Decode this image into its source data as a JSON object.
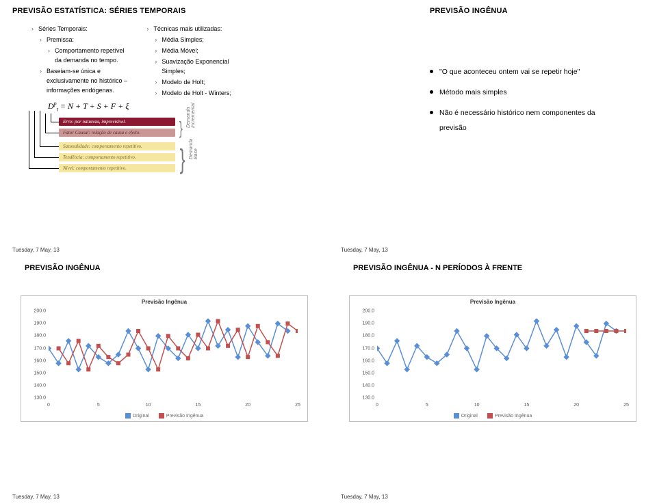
{
  "q1": {
    "title": "PREVISÃO ESTATÍSTICA: SÉRIES TEMPORAIS",
    "left_list": {
      "l0": "Séries Temporais:",
      "l1": "Premissa:",
      "l2a": "Comportamento repetível",
      "l2b": "da demanda no tempo.",
      "l3a": "Baseiam-se única e",
      "l3b": "exclusivamente no histórico –",
      "l3c": "informações endógenas."
    },
    "right_list": {
      "r0": "Técnicas mais utilizadas:",
      "r1": "Média Simples;",
      "r2": "Média Móvel;",
      "r3a": "Suavização Exponencial",
      "r3b": "Simples;",
      "r4": "Modelo de Holt;",
      "r5": "Modelo de Holt - Winters;"
    },
    "formula": {
      "lhs_D": "D",
      "lhs_p": "p",
      "lhs_t": "t",
      "eq": " = ",
      "rhs": "N + T + S + F + ξ"
    },
    "boxes": {
      "b_err": "Erro: por natureza, imprevisível.",
      "b_fc": "Fator Causal: relação de causa e efeito.",
      "b_saz": "Sazonalidade: comportamento repetitivo.",
      "b_tend": "Tendência: comportamento repetitivo.",
      "b_niv": "Nível: comportamento repetitivo."
    },
    "braces": {
      "top_label": "Demanda\nIncremental",
      "bot_label": "Demanda\nBase"
    },
    "date": "Tuesday, 7 May, 13"
  },
  "q2": {
    "title": "PREVISÃO INGÊNUA",
    "b1": "\"O que aconteceu ontem vai se repetir hoje\"",
    "b2": "Método mais simples",
    "b3a": "Não é necessário histórico nem componentes da",
    "b3b": "previsão",
    "date": "Tuesday, 7 May, 13"
  },
  "q3": {
    "title": "PREVISÃO INGÊNUA",
    "chart": {
      "title": "Previsão Ingênua",
      "y_ticks": [
        "130.0",
        "140.0",
        "150.0",
        "160.0",
        "170.0",
        "180.0",
        "190.0",
        "200.0"
      ],
      "x_ticks": [
        "0",
        "5",
        "10",
        "15",
        "20",
        "25"
      ],
      "x_min": 0,
      "x_max": 25,
      "y_min": 130,
      "y_max": 200,
      "series_blue": {
        "name": "Original",
        "color": "#5a8fd6",
        "x": [
          0,
          1,
          2,
          3,
          4,
          5,
          6,
          7,
          8,
          9,
          10,
          11,
          12,
          13,
          14,
          15,
          16,
          17,
          18,
          19,
          20,
          21,
          22,
          23,
          24
        ],
        "y": [
          170,
          158,
          176,
          153,
          172,
          163,
          158,
          165,
          184,
          170,
          153,
          180,
          170,
          162,
          181,
          170,
          192,
          172,
          185,
          163,
          188,
          175,
          164,
          190,
          184
        ]
      },
      "series_red": {
        "name": "Previsão Ingênua",
        "color": "#c1504f",
        "x": [
          1,
          2,
          3,
          4,
          5,
          6,
          7,
          8,
          9,
          10,
          11,
          12,
          13,
          14,
          15,
          16,
          17,
          18,
          19,
          20,
          21,
          22,
          23,
          24,
          25
        ],
        "y": [
          170,
          158,
          176,
          153,
          172,
          163,
          158,
          165,
          184,
          170,
          153,
          180,
          170,
          162,
          181,
          170,
          192,
          172,
          185,
          163,
          188,
          175,
          164,
          190,
          184
        ]
      },
      "legend_original": "Original",
      "legend_pred": "Previsão Ingênua"
    },
    "date": "Tuesday, 7 May, 13"
  },
  "q4": {
    "title": "PREVISÃO INGÊNUA - N PERÍODOS À FRENTE",
    "chart": {
      "title": "Previsão Ingênua",
      "y_ticks": [
        "130.0",
        "140.0",
        "150.0",
        "160.0",
        "170.0",
        "180.0",
        "190.0",
        "200.0"
      ],
      "x_ticks": [
        "0",
        "5",
        "10",
        "15",
        "20",
        "25"
      ],
      "x_min": 0,
      "x_max": 25,
      "y_min": 130,
      "y_max": 200,
      "series_blue": {
        "name": "Original",
        "color": "#5a8fd6",
        "x": [
          0,
          1,
          2,
          3,
          4,
          5,
          6,
          7,
          8,
          9,
          10,
          11,
          12,
          13,
          14,
          15,
          16,
          17,
          18,
          19,
          20,
          21,
          22,
          23,
          24
        ],
        "y": [
          170,
          158,
          176,
          153,
          172,
          163,
          158,
          165,
          184,
          170,
          153,
          180,
          170,
          162,
          181,
          170,
          192,
          172,
          185,
          163,
          188,
          175,
          164,
          190,
          184
        ]
      },
      "series_red": {
        "name": "Previsão Ingênua",
        "color": "#c1504f",
        "x": [
          21,
          22,
          23,
          24,
          25
        ],
        "y": [
          184,
          184,
          184,
          184,
          184
        ]
      },
      "legend_original": "Original",
      "legend_pred": "Previsão Ingênua"
    },
    "date": "Tuesday, 7 May, 13"
  }
}
